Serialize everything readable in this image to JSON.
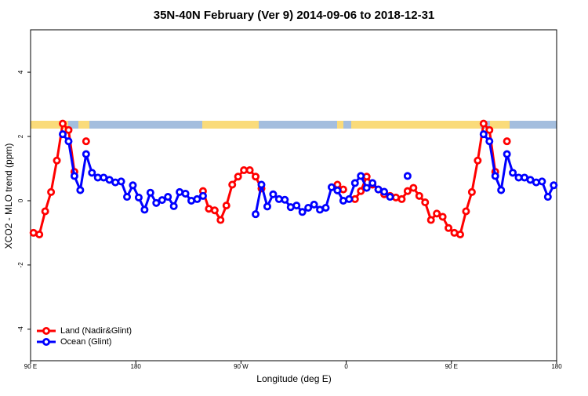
{
  "chart_data": {
    "type": "line",
    "title": "35N-40N February (Ver 9)   2014-09-06 to 2018-12-31",
    "x_label": "Longitude (deg E)",
    "y_label": "XCO2 - MLO trend (ppm)",
    "x": [
      92.5,
      97.5,
      102.5,
      107.5,
      112.5,
      117.5,
      122.5,
      127.5,
      132.5,
      137.5,
      142.5,
      147.5,
      152.5,
      157.5,
      162.5,
      167.5,
      172.5,
      177.5,
      182.5,
      187.5,
      192.5,
      197.5,
      202.5,
      207.5,
      212.5,
      217.5,
      222.5,
      227.5,
      232.5,
      237.5,
      242.5,
      247.5,
      252.5,
      257.5,
      262.5,
      267.5,
      272.5,
      277.5,
      282.5,
      287.5,
      292.5,
      297.5,
      302.5,
      307.5,
      312.5,
      317.5,
      322.5,
      327.5,
      332.5,
      337.5,
      342.5,
      347.5,
      352.5,
      357.5,
      362.5,
      367.5,
      372.5,
      377.5,
      382.5,
      387.5,
      392.5,
      397.5,
      402.5,
      407.5,
      412.5,
      417.5,
      422.5,
      427.5,
      432.5,
      437.5,
      442.5,
      447.5,
      452.5,
      457.5,
      462.5,
      467.5,
      472.5,
      477.5,
      482.5,
      487.5,
      492.5,
      497.5,
      502.5,
      507.5,
      512.5,
      517.5,
      522.5,
      527.5,
      532.5,
      537.5
    ],
    "series": [
      {
        "name": "Land (Nadir&Glint)",
        "color": "#ff0000",
        "values": [
          -1.0,
          -1.05,
          -0.33,
          0.27,
          1.25,
          2.4,
          2.2,
          0.9,
          null,
          1.85,
          null,
          null,
          null,
          null,
          null,
          null,
          null,
          null,
          null,
          null,
          null,
          null,
          null,
          null,
          null,
          null,
          null,
          null,
          null,
          0.3,
          -0.25,
          -0.3,
          -0.6,
          -0.15,
          0.5,
          0.75,
          0.95,
          0.95,
          0.75,
          0.38,
          null,
          null,
          null,
          null,
          null,
          null,
          null,
          null,
          null,
          null,
          null,
          null,
          0.5,
          0.35,
          null,
          0.05,
          0.3,
          0.75,
          0.5,
          0.35,
          0.2,
          0.15,
          0.1,
          0.05,
          0.3,
          0.4,
          0.15,
          -0.05,
          -0.6,
          -0.4,
          -0.5,
          -0.85,
          -1.0,
          -1.05,
          -0.33,
          0.27,
          1.25,
          2.4,
          2.2,
          0.9,
          null,
          1.85,
          null,
          null,
          null,
          null,
          null,
          null,
          null,
          null
        ]
      },
      {
        "name": "Ocean (Glint)",
        "color": "#0000ff",
        "values": [
          null,
          null,
          null,
          null,
          null,
          2.07,
          1.85,
          0.77,
          0.33,
          1.45,
          0.87,
          0.72,
          0.72,
          0.65,
          0.57,
          0.6,
          0.12,
          0.48,
          0.1,
          -0.28,
          0.25,
          -0.07,
          0.02,
          0.12,
          -0.17,
          0.27,
          0.22,
          0.0,
          0.05,
          0.15,
          null,
          null,
          null,
          null,
          null,
          null,
          null,
          null,
          -0.42,
          0.5,
          -0.18,
          0.2,
          0.05,
          0.03,
          -0.2,
          -0.15,
          -0.35,
          -0.22,
          -0.12,
          -0.28,
          -0.22,
          0.42,
          0.32,
          0.0,
          0.05,
          0.55,
          0.77,
          0.4,
          0.55,
          0.35,
          0.28,
          0.12,
          null,
          null,
          0.77,
          null,
          null,
          null,
          null,
          null,
          null,
          null,
          null,
          null,
          null,
          null,
          null,
          2.07,
          1.85,
          0.77,
          0.33,
          1.45,
          0.87,
          0.72,
          0.72,
          0.65,
          0.57,
          0.6,
          0.12,
          0.48
        ]
      }
    ],
    "xlim": [
      90,
      540
    ],
    "xticks": [
      {
        "value": 90,
        "label": "90 E"
      },
      {
        "value": 180,
        "label": "180"
      },
      {
        "value": 270,
        "label": "90 W"
      },
      {
        "value": 360,
        "label": "0"
      },
      {
        "value": 450,
        "label": "90 E"
      },
      {
        "value": 540,
        "label": "180"
      }
    ],
    "ylim": [
      -4.98,
      5.32
    ],
    "yticks": [
      -4,
      -2,
      0,
      2,
      4
    ],
    "legend": "bottom-left"
  }
}
